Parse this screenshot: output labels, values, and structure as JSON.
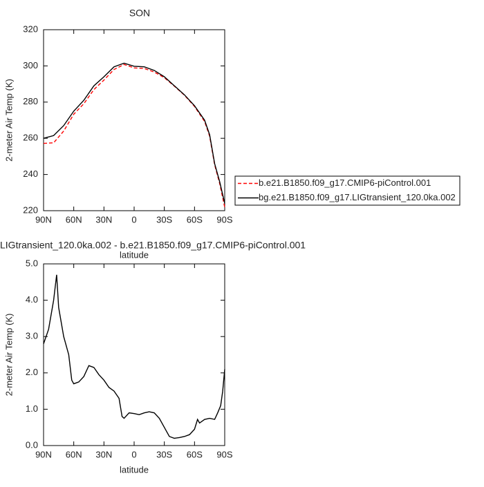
{
  "chart_data": [
    {
      "type": "line",
      "title": "SON",
      "xlabel": "latitude",
      "ylabel": "2-meter Air Temp (K)",
      "x": [
        90,
        80,
        70,
        60,
        50,
        40,
        30,
        20,
        10,
        0,
        -10,
        -20,
        -30,
        -40,
        -50,
        -60,
        -70,
        -75,
        -80,
        -85,
        -90
      ],
      "series": [
        {
          "name": "b.e21.B1850.f09_g17.CMIP6-piControl.001",
          "color": "#ff0000",
          "dashed": true,
          "values": [
            257.2,
            257.5,
            264,
            273.3,
            279.1,
            286.9,
            292.2,
            298,
            300.8,
            298.9,
            298.6,
            296.6,
            293.5,
            288.8,
            283.8,
            277.6,
            269.3,
            261.2,
            245.3,
            235,
            221.9
          ]
        },
        {
          "name": "bg.e21.B1850.f09_g17.LIGtransient_120.0ka.002",
          "color": "#000000",
          "dashed": false,
          "values": [
            260,
            261.5,
            267,
            275,
            281,
            289,
            294,
            299.5,
            301.5,
            299.8,
            299.5,
            297.5,
            294,
            289,
            284,
            278,
            270,
            262,
            246,
            236,
            224
          ]
        }
      ],
      "xlim": [
        90,
        -90
      ],
      "xticks": [
        {
          "value": 90,
          "label": "90N"
        },
        {
          "value": 60,
          "label": "60N"
        },
        {
          "value": 30,
          "label": "30N"
        },
        0,
        {
          "value": -30,
          "label": "30S"
        },
        {
          "value": -60,
          "label": "60S"
        },
        {
          "value": -90,
          "label": "90S"
        }
      ],
      "ylim": [
        220,
        320
      ],
      "yticks": [
        220,
        240,
        260,
        280,
        300,
        320
      ],
      "legend": "outside-right"
    },
    {
      "type": "line",
      "title": "LIGtransient_120.0ka.002 - b.e21.B1850.f09_g17.CMIP6-piControl.001",
      "xlabel": "latitude",
      "ylabel": "2-meter Air Temp (K)",
      "x": [
        90,
        85,
        80,
        77,
        75,
        70,
        65,
        62,
        60,
        55,
        50,
        45,
        40,
        35,
        30,
        25,
        20,
        15,
        12,
        10,
        5,
        0,
        -5,
        -10,
        -15,
        -20,
        -25,
        -30,
        -35,
        -40,
        -45,
        -50,
        -55,
        -60,
        -63,
        -65,
        -70,
        -75,
        -80,
        -83,
        -86,
        -88,
        -90
      ],
      "series": [
        {
          "color": "#000000",
          "dashed": false,
          "values": [
            2.8,
            3.2,
            4.0,
            4.7,
            3.8,
            3.0,
            2.5,
            1.8,
            1.7,
            1.75,
            1.9,
            2.2,
            2.15,
            1.95,
            1.8,
            1.6,
            1.5,
            1.3,
            0.8,
            0.75,
            0.9,
            0.88,
            0.85,
            0.9,
            0.93,
            0.9,
            0.75,
            0.5,
            0.25,
            0.2,
            0.22,
            0.25,
            0.3,
            0.45,
            0.72,
            0.62,
            0.72,
            0.75,
            0.72,
            0.9,
            1.1,
            1.5,
            2.1
          ]
        }
      ],
      "xlim": [
        90,
        -90
      ],
      "xticks": [
        {
          "value": 90,
          "label": "90N"
        },
        {
          "value": 60,
          "label": "60N"
        },
        {
          "value": 30,
          "label": "30N"
        },
        0,
        {
          "value": -30,
          "label": "30S"
        },
        {
          "value": -60,
          "label": "60S"
        },
        {
          "value": -90,
          "label": "90S"
        }
      ],
      "ylim": [
        0,
        5
      ],
      "yticks": [
        {
          "value": 0,
          "label": "0.0"
        },
        {
          "value": 1,
          "label": "1.0"
        },
        {
          "value": 2,
          "label": "2.0"
        },
        {
          "value": 3,
          "label": "3.0"
        },
        {
          "value": 4,
          "label": "4.0"
        },
        {
          "value": 5,
          "label": "5.0"
        }
      ]
    }
  ]
}
